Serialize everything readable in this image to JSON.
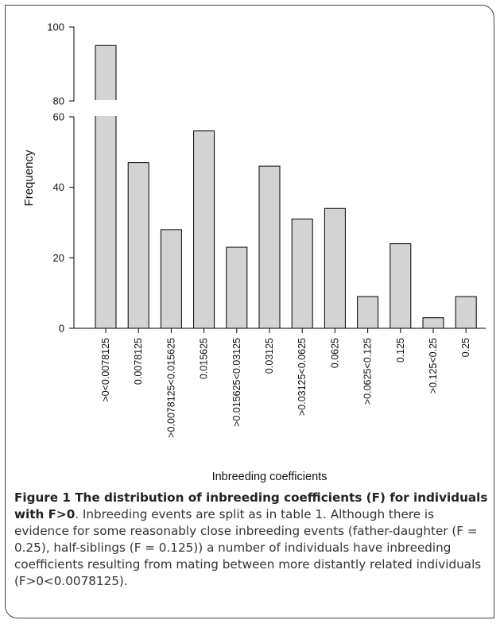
{
  "chart_data": {
    "type": "bar",
    "categories": [
      ">0<0.0078125",
      "0.0078125",
      ">0.0078125<0.015625",
      "0.015625",
      ">0.015625<0.03125",
      "0.03125",
      ">0.03125<0.0625",
      "0.0625",
      ">0.0625<0.125",
      "0.125",
      ">0.125<0.25",
      "0.25"
    ],
    "values": [
      95,
      47,
      28,
      56,
      23,
      46,
      31,
      34,
      9,
      24,
      3,
      9
    ],
    "xlabel": "Inbreeding coefficients",
    "ylabel": "Frequency",
    "axis_break": [
      60,
      80
    ],
    "yticks_lower": [
      0,
      20,
      40,
      60
    ],
    "yticks_upper": [
      80,
      100
    ],
    "ylim": [
      0,
      100
    ],
    "grid": false,
    "bar_color": "#d3d3d3",
    "bar_edge_color": "#000000"
  },
  "caption": {
    "title": "Figure 1 The distribution of inbreeding coefficients (F) for individuals with F>0",
    "text": ". Inbreeding events are split as in table 1. Although there is evidence for some reasonably close inbreeding events (father-daughter (F = 0.25), half-siblings (F = 0.125)) a number of individuals have inbreeding coefficients resulting from mating between more distantly related individuals (F>0<0.0078125)."
  }
}
